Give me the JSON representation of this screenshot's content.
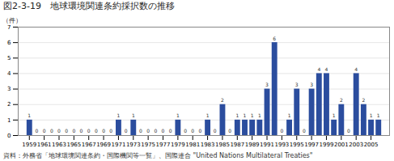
{
  "chart_data": {
    "type": "bar",
    "title": "図2-3-19　地球環境関連条約採択数の推移",
    "ylabel": "（件）",
    "annotations": [
      "資料：外務省「地球環境関連条約・国際機関等一覧」、国際連合 \"United Nations Multilateral Treaties\""
    ],
    "x": [
      1959,
      1960,
      1961,
      1962,
      1963,
      1964,
      1965,
      1966,
      1967,
      1968,
      1969,
      1970,
      1971,
      1972,
      1973,
      1974,
      1975,
      1976,
      1977,
      1978,
      1979,
      1980,
      1981,
      1982,
      1983,
      1984,
      1985,
      1986,
      1987,
      1988,
      1989,
      1990,
      1991,
      1992,
      1993,
      1994,
      1995,
      1996,
      1997,
      1998,
      1999,
      2000,
      2001,
      2002,
      2003,
      2004,
      2005,
      2006
    ],
    "values": [
      1,
      0,
      0,
      0,
      0,
      0,
      0,
      0,
      0,
      0,
      0,
      0,
      1,
      0,
      1,
      0,
      0,
      0,
      0,
      0,
      1,
      0,
      0,
      0,
      1,
      0,
      2,
      0,
      1,
      1,
      1,
      1,
      3,
      6,
      0,
      1,
      3,
      0,
      3,
      4,
      4,
      1,
      2,
      0,
      4,
      2,
      1,
      1
    ],
    "color": "#2b4d9e",
    "xlim": [
      1957.5,
      2007.5
    ],
    "xticks": [
      1959,
      1961,
      1963,
      1965,
      1967,
      1969,
      1971,
      1973,
      1975,
      1977,
      1979,
      1981,
      1983,
      1985,
      1987,
      1989,
      1991,
      1993,
      1995,
      1997,
      1999,
      2001,
      2003,
      2005
    ],
    "ylim": [
      0,
      7
    ],
    "yticks": [
      0,
      1,
      2,
      3,
      4,
      5,
      6,
      7
    ],
    "grid": true,
    "data_labels": true
  }
}
